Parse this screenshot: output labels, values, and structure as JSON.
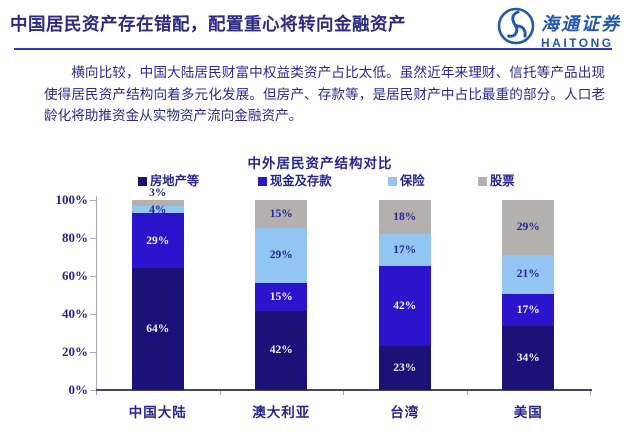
{
  "slide": {
    "title": "中国居民资产存在错配，配置重心将转向金融资产",
    "brand": {
      "name_cn": "海通证券",
      "name_en": "HAITONG",
      "brand_color": "#2458aa"
    },
    "paragraph": "横向比较，中国大陆居民财富中权益类资产占比太低。虽然近年来理财、信托等产品出现使得居民资产结构向着多元化发展。但房产、存款等，是居民财产中占比最重的部分。人口老龄化将助推资金从实物资产流向金融资产。"
  },
  "theme": {
    "accent_navy": "#2b2b80",
    "text_navy": "#2a2a8e",
    "rule_color": "#3838a8"
  },
  "chart_data": {
    "type": "bar",
    "stacked": true,
    "title": "中外居民资产结构对比",
    "categories": [
      "中国大陆",
      "澳大利亚",
      "台湾",
      "美国"
    ],
    "series": [
      {
        "name": "房地产等",
        "color": "#1b1278",
        "label_color": "#f2f2f2",
        "values": [
          64,
          42,
          23,
          34
        ]
      },
      {
        "name": "现金及存款",
        "color": "#2a14cc",
        "label_color": "#f2f2f2",
        "values": [
          29,
          15,
          42,
          17
        ]
      },
      {
        "name": "保险",
        "color": "#92c5f2",
        "label_color": "#26268c",
        "values": [
          4,
          29,
          17,
          21
        ]
      },
      {
        "name": "股票",
        "color": "#b3b0ae",
        "label_color": "#26268c",
        "values": [
          3,
          15,
          18,
          29
        ]
      }
    ],
    "unit": "%",
    "y_ticks": [
      "100%",
      "80%",
      "60%",
      "40%",
      "20%",
      "0%"
    ],
    "ylim": [
      0,
      100
    ],
    "grid": false,
    "legend_position": "top",
    "xlabel": "",
    "ylabel": ""
  }
}
